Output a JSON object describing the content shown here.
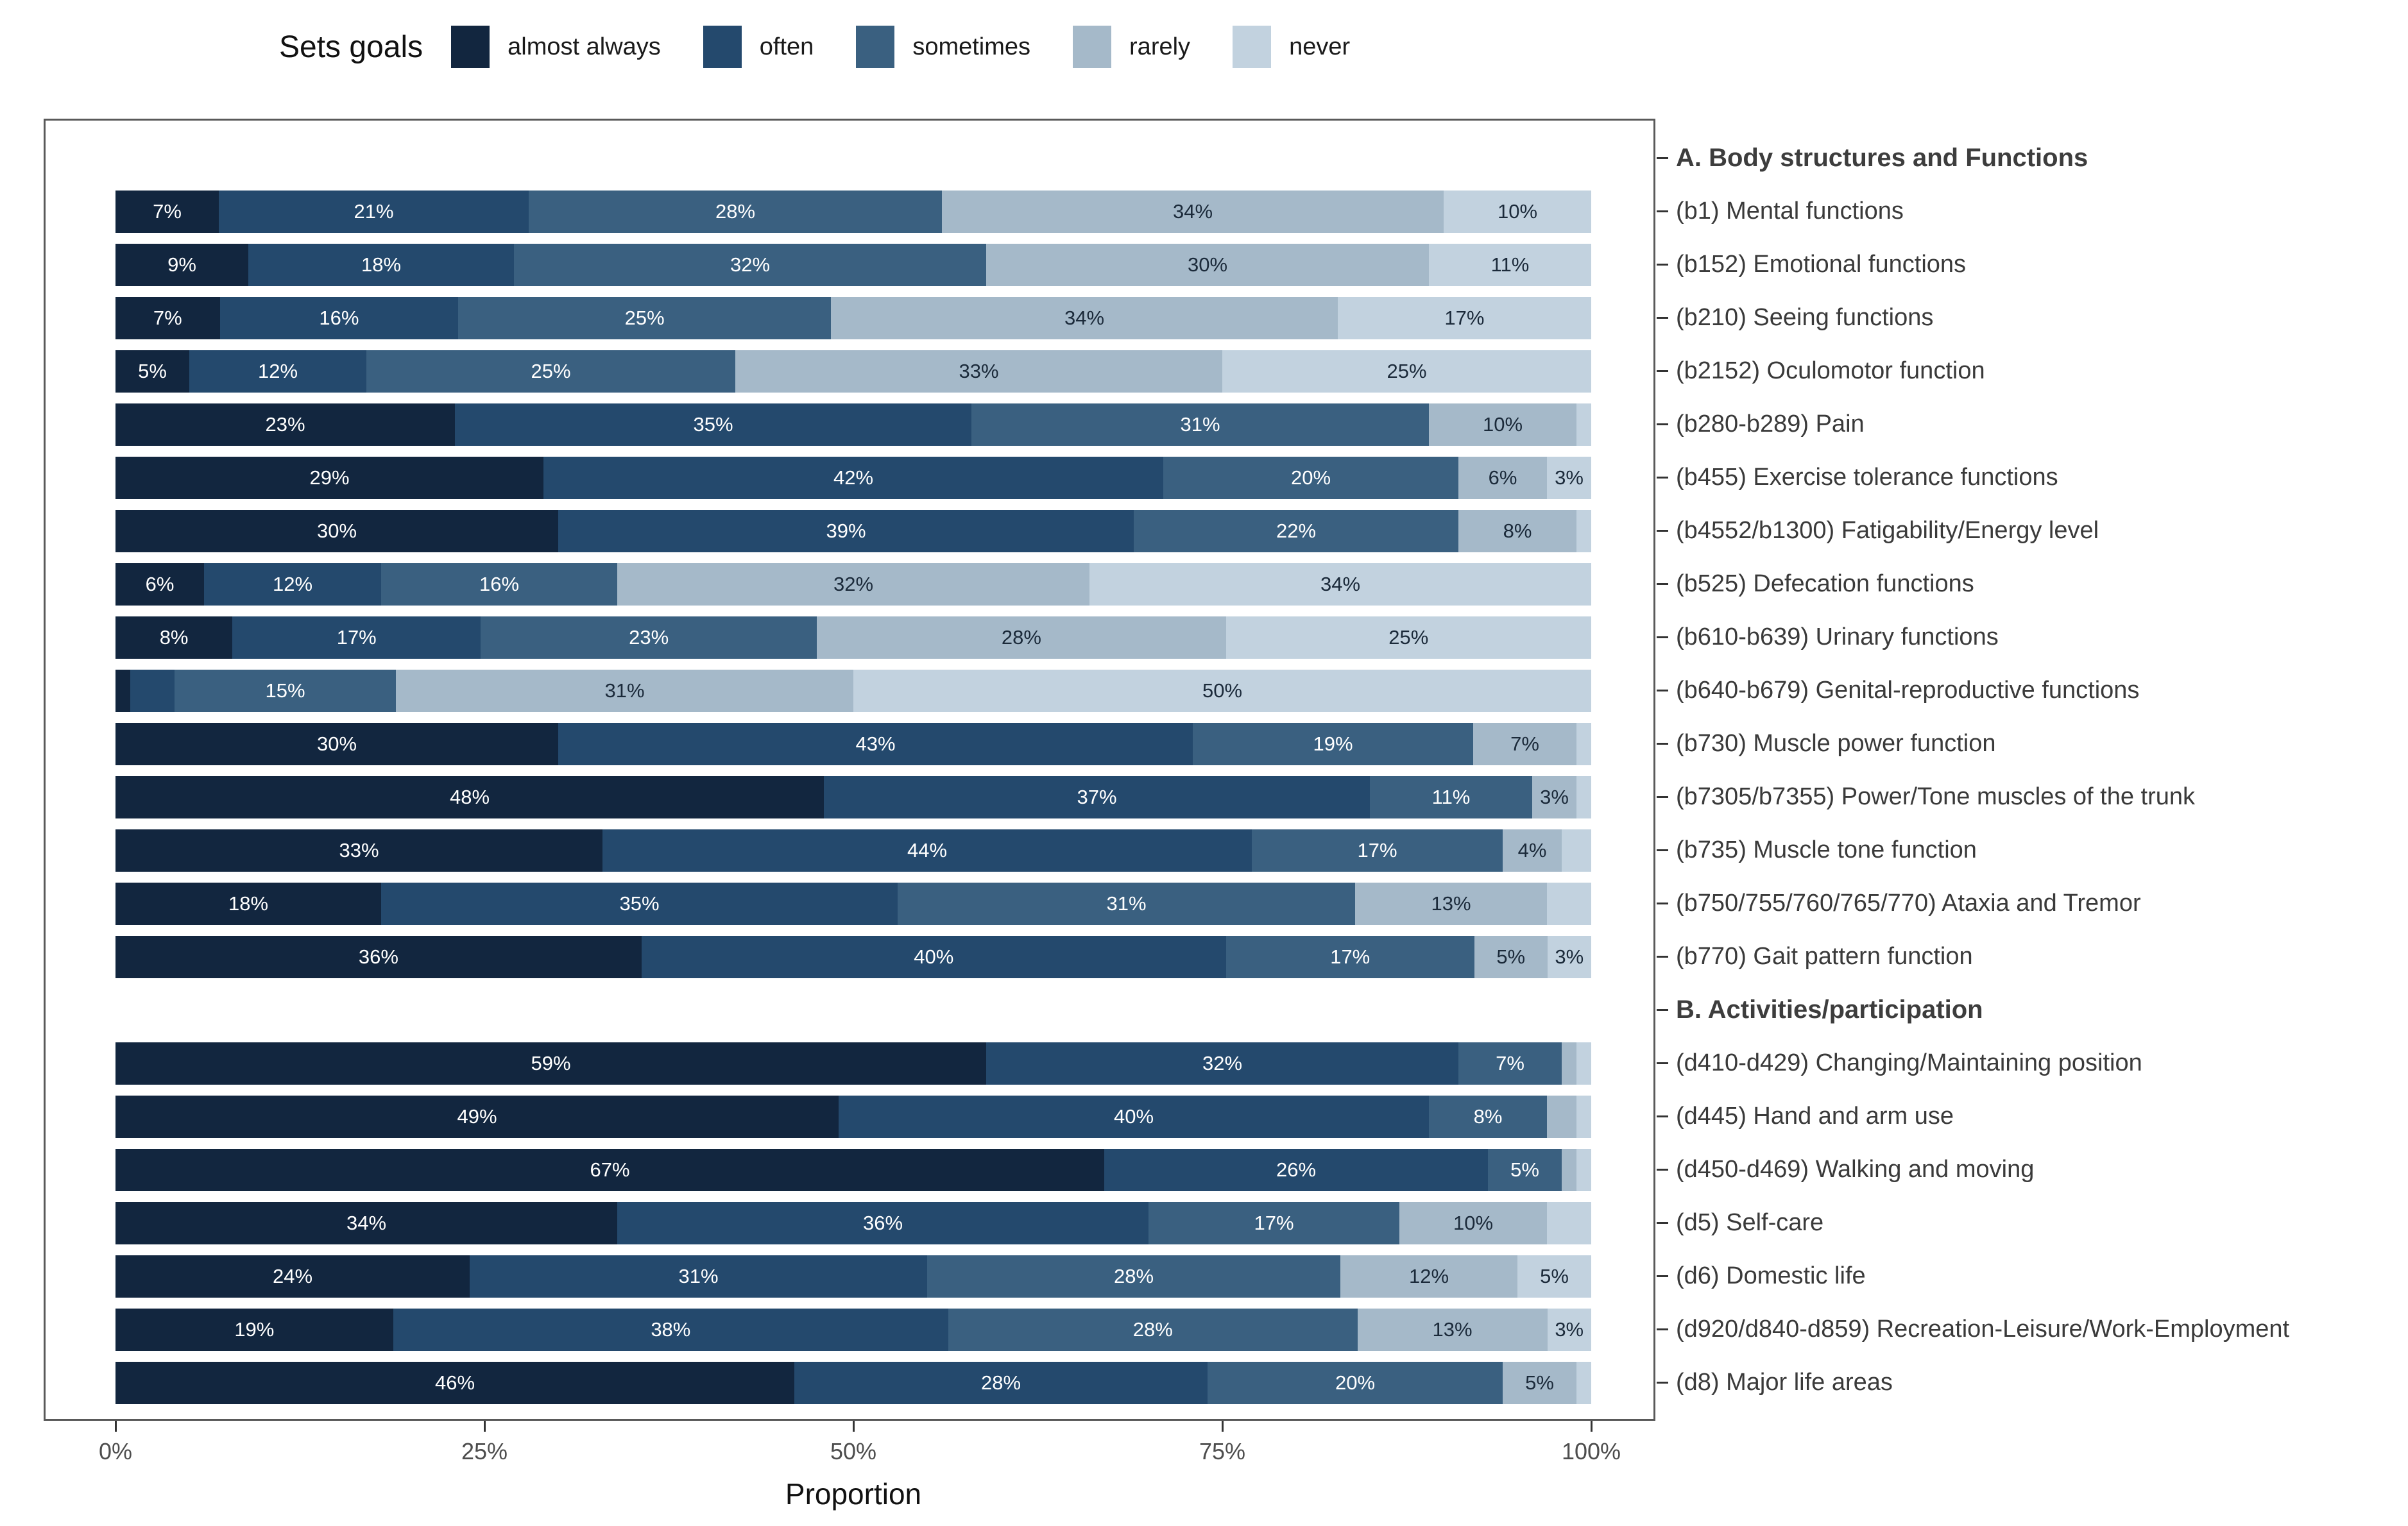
{
  "chart_data": {
    "type": "stacked-bar-horizontal",
    "legend": {
      "title": "Sets goals",
      "entries": [
        "almost always",
        "often",
        "sometimes",
        "rarely",
        "never"
      ]
    },
    "series_colors": [
      "#12263f",
      "#24496d",
      "#3a6080",
      "#a5b9c9",
      "#c2d2df"
    ],
    "value_label_colors": [
      "#ffffff",
      "#ffffff",
      "#ffffff",
      "#1b2a3a",
      "#1b2a3a"
    ],
    "xlabel": "Proportion",
    "x_ticks": [
      {
        "label": "0%",
        "pct": 0
      },
      {
        "label": "25%",
        "pct": 25
      },
      {
        "label": "50%",
        "pct": 50
      },
      {
        "label": "75%",
        "pct": 75
      },
      {
        "label": "100%",
        "pct": 100
      }
    ],
    "axis_range": [
      0,
      100
    ],
    "sections": [
      {
        "header": "A. Body structures and Functions",
        "rows": [
          {
            "label": "(b1)  Mental functions",
            "values": [
              7,
              21,
              28,
              34,
              10
            ],
            "value_labels": [
              "7%",
              "21%",
              "28%",
              "34%",
              "10%"
            ]
          },
          {
            "label": "(b152)  Emotional functions",
            "values": [
              9,
              18,
              32,
              30,
              11
            ],
            "value_labels": [
              "9%",
              "18%",
              "32%",
              "30%",
              "11%"
            ]
          },
          {
            "label": "(b210)  Seeing functions",
            "values": [
              7,
              16,
              25,
              34,
              17
            ],
            "value_labels": [
              "7%",
              "16%",
              "25%",
              "34%",
              "17%"
            ]
          },
          {
            "label": "(b2152)  Oculomotor function",
            "values": [
              5,
              12,
              25,
              33,
              25
            ],
            "value_labels": [
              "5%",
              "12%",
              "25%",
              "33%",
              "25%"
            ]
          },
          {
            "label": "(b280-b289)  Pain",
            "values": [
              23,
              35,
              31,
              10,
              1
            ],
            "value_labels": [
              "23%",
              "35%",
              "31%",
              "10%",
              ""
            ]
          },
          {
            "label": "(b455)  Exercise tolerance functions",
            "values": [
              29,
              42,
              20,
              6,
              3
            ],
            "value_labels": [
              "29%",
              "42%",
              "20%",
              "6%",
              "3%"
            ]
          },
          {
            "label": "(b4552/b1300)  Fatigability/Energy level",
            "values": [
              30,
              39,
              22,
              8,
              1
            ],
            "value_labels": [
              "30%",
              "39%",
              "22%",
              "8%",
              ""
            ]
          },
          {
            "label": "(b525)  Defecation functions",
            "values": [
              6,
              12,
              16,
              32,
              34
            ],
            "value_labels": [
              "6%",
              "12%",
              "16%",
              "32%",
              "34%"
            ]
          },
          {
            "label": "(b610-b639)  Urinary functions",
            "values": [
              8,
              17,
              23,
              28,
              25
            ],
            "value_labels": [
              "8%",
              "17%",
              "23%",
              "28%",
              "25%"
            ]
          },
          {
            "label": "(b640-b679)  Genital-reproductive functions",
            "values": [
              1,
              3,
              15,
              31,
              50
            ],
            "value_labels": [
              "",
              "",
              "15%",
              "31%",
              "50%"
            ]
          },
          {
            "label": "(b730)  Muscle power function",
            "values": [
              30,
              43,
              19,
              7,
              1
            ],
            "value_labels": [
              "30%",
              "43%",
              "19%",
              "7%",
              ""
            ]
          },
          {
            "label": "(b7305/b7355)  Power/Tone muscles of the trunk",
            "values": [
              48,
              37,
              11,
              3,
              1
            ],
            "value_labels": [
              "48%",
              "37%",
              "11%",
              "3%",
              ""
            ]
          },
          {
            "label": "(b735)  Muscle tone function",
            "values": [
              33,
              44,
              17,
              4,
              2
            ],
            "value_labels": [
              "33%",
              "44%",
              "17%",
              "4%",
              ""
            ]
          },
          {
            "label": "(b750/755/760/765/770)  Ataxia and Tremor",
            "values": [
              18,
              35,
              31,
              13,
              3
            ],
            "value_labels": [
              "18%",
              "35%",
              "31%",
              "13%",
              ""
            ]
          },
          {
            "label": "(b770)  Gait pattern function",
            "values": [
              36,
              40,
              17,
              5,
              3
            ],
            "value_labels": [
              "36%",
              "40%",
              "17%",
              "5%",
              "3%"
            ]
          }
        ]
      },
      {
        "header": "B. Activities/participation",
        "rows": [
          {
            "label": "(d410-d429)  Changing/Maintaining position",
            "values": [
              59,
              32,
              7,
              1,
              1
            ],
            "value_labels": [
              "59%",
              "32%",
              "7%",
              "",
              ""
            ]
          },
          {
            "label": "(d445)  Hand and arm use",
            "values": [
              49,
              40,
              8,
              2,
              1
            ],
            "value_labels": [
              "49%",
              "40%",
              "8%",
              "",
              ""
            ]
          },
          {
            "label": "(d450-d469)  Walking and moving",
            "values": [
              67,
              26,
              5,
              1,
              1
            ],
            "value_labels": [
              "67%",
              "26%",
              "5%",
              "",
              ""
            ]
          },
          {
            "label": "(d5)  Self-care",
            "values": [
              34,
              36,
              17,
              10,
              3
            ],
            "value_labels": [
              "34%",
              "36%",
              "17%",
              "10%",
              ""
            ]
          },
          {
            "label": "(d6)  Domestic life",
            "values": [
              24,
              31,
              28,
              12,
              5
            ],
            "value_labels": [
              "24%",
              "31%",
              "28%",
              "12%",
              "5%"
            ]
          },
          {
            "label": "(d920/d840-d859)  Recreation-Leisure/Work-Employment",
            "values": [
              19,
              38,
              28,
              13,
              3
            ],
            "value_labels": [
              "19%",
              "38%",
              "28%",
              "13%",
              "3%"
            ]
          },
          {
            "label": "(d8)  Major life areas",
            "values": [
              46,
              28,
              20,
              5,
              1
            ],
            "value_labels": [
              "46%",
              "28%",
              "20%",
              "5%",
              ""
            ]
          }
        ]
      }
    ]
  }
}
